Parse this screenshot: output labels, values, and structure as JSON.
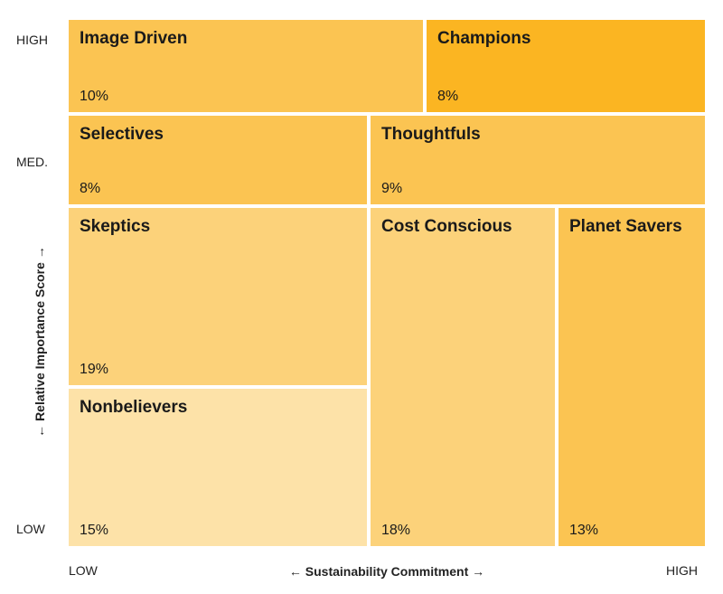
{
  "chart_data": {
    "type": "treemap",
    "xlabel": "← Sustainability Commitment →",
    "ylabel": "← Relative Importance Score →",
    "x_ticks": [
      "LOW",
      "HIGH"
    ],
    "y_ticks": [
      "HIGH",
      "MED.",
      "LOW"
    ],
    "segments": [
      {
        "name": "Image Driven",
        "value_label": "10%",
        "value": 10,
        "importance": "HIGH",
        "color": "#FBC452"
      },
      {
        "name": "Champions",
        "value_label": "8%",
        "value": 8,
        "importance": "HIGH",
        "color": "#FBB522"
      },
      {
        "name": "Selectives",
        "value_label": "8%",
        "value": 8,
        "importance": "MED.",
        "color": "#FBC452"
      },
      {
        "name": "Thoughtfuls",
        "value_label": "9%",
        "value": 9,
        "importance": "MED.",
        "color": "#FBC452"
      },
      {
        "name": "Skeptics",
        "value_label": "19%",
        "value": 19,
        "importance": "LOW",
        "color": "#FCD27A"
      },
      {
        "name": "Nonbelievers",
        "value_label": "15%",
        "value": 15,
        "importance": "LOW",
        "color": "#FDE2A8"
      },
      {
        "name": "Cost Conscious",
        "value_label": "18%",
        "value": 18,
        "importance": "LOW",
        "color": "#FCD27A"
      },
      {
        "name": "Planet Savers",
        "value_label": "13%",
        "value": 13,
        "importance": "LOW",
        "color": "#FBC452"
      }
    ]
  }
}
